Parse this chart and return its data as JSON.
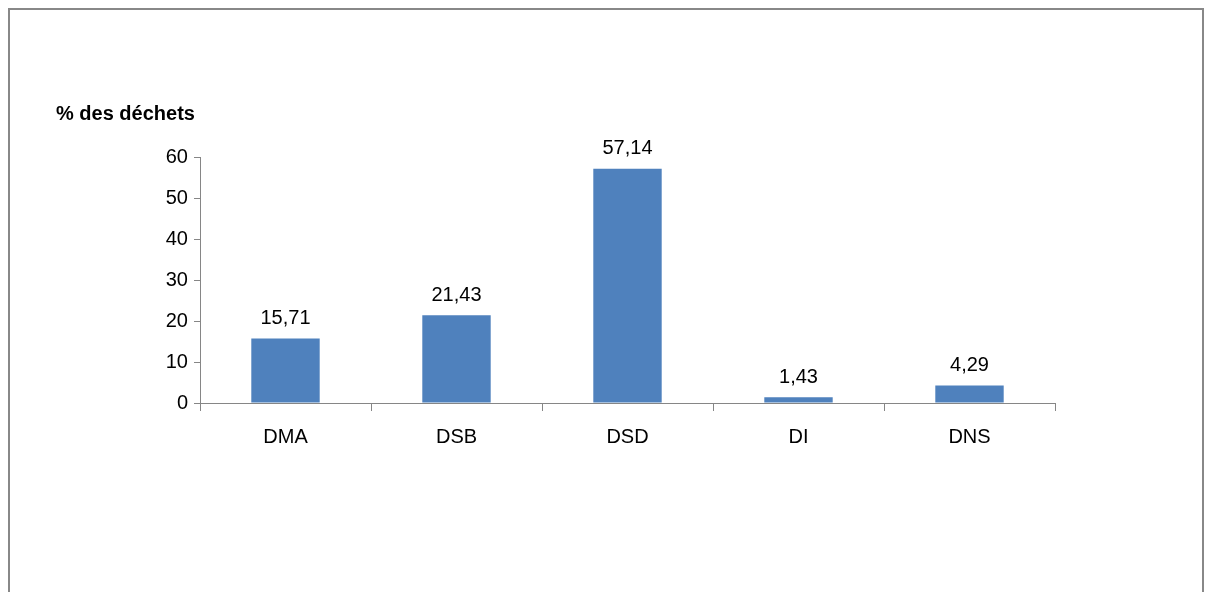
{
  "chart_data": {
    "type": "bar",
    "ylabel": "% des déchets",
    "categories": [
      "DMA",
      "DSB",
      "DSD",
      "DI",
      "DNS"
    ],
    "values": [
      15.71,
      21.43,
      57.14,
      1.43,
      4.29
    ],
    "value_labels": [
      "15,71",
      "21,43",
      "57,14",
      "1,43",
      "4,29"
    ],
    "color": "#4f81bd",
    "ylim": [
      0,
      60
    ],
    "yticks": [
      0,
      10,
      20,
      30,
      40,
      50,
      60
    ],
    "grid": false,
    "legend": false
  }
}
